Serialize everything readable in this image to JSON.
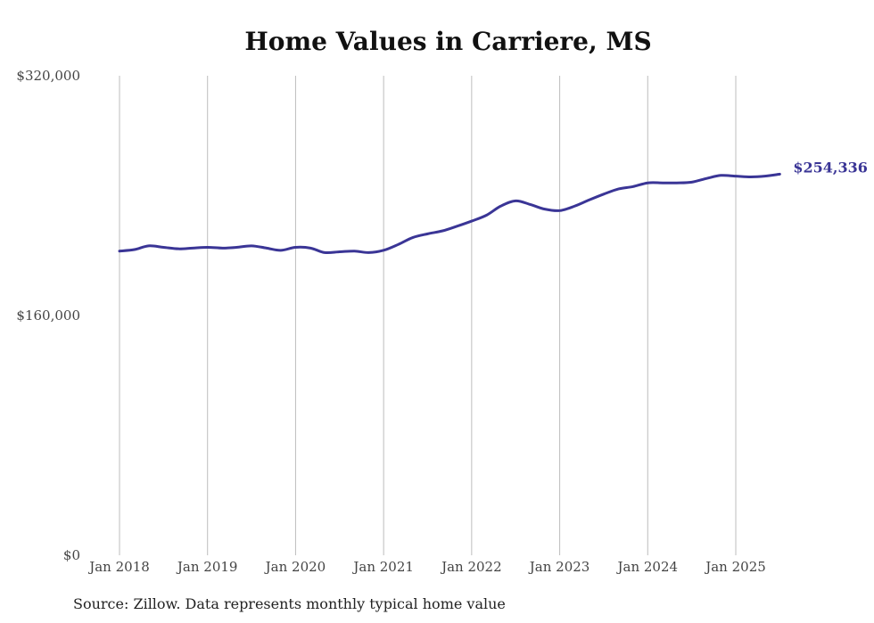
{
  "chart_data": {
    "type": "line",
    "title": "Home Values in Carriere, MS",
    "source": "Source: Zillow. Data represents monthly typical home value",
    "ylim": [
      0,
      320000
    ],
    "yticks": [
      0,
      160000,
      320000
    ],
    "ytick_labels": [
      "$0",
      "$160,000",
      "$320,000"
    ],
    "xticks": [
      2018,
      2019,
      2020,
      2021,
      2022,
      2023,
      2024,
      2025
    ],
    "xtick_labels": [
      "Jan 2018",
      "Jan 2019",
      "Jan 2020",
      "Jan 2021",
      "Jan 2022",
      "Jan 2023",
      "Jan 2024",
      "Jan 2025"
    ],
    "grid": "vertical",
    "line_color": "#3a3596",
    "end_label": "$254,336",
    "series": [
      {
        "x": [
          2018.0,
          2018.17,
          2018.33,
          2018.5,
          2018.67,
          2018.83,
          2019.0,
          2019.17,
          2019.33,
          2019.5,
          2019.67,
          2019.83,
          2020.0,
          2020.17,
          2020.33,
          2020.5,
          2020.67,
          2020.83,
          2021.0,
          2021.17,
          2021.33,
          2021.5,
          2021.67,
          2021.83,
          2022.0,
          2022.17,
          2022.33,
          2022.5,
          2022.67,
          2022.83,
          2023.0,
          2023.17,
          2023.33,
          2023.5,
          2023.67,
          2023.83,
          2024.0,
          2024.17,
          2024.33,
          2024.5,
          2024.67,
          2024.83,
          2025.0,
          2025.17,
          2025.33,
          2025.5
        ],
        "values": [
          203000,
          204000,
          206500,
          205500,
          204500,
          205000,
          205500,
          205000,
          205500,
          206500,
          205000,
          203500,
          205500,
          205000,
          202000,
          202500,
          203000,
          202000,
          203500,
          207500,
          212000,
          214500,
          216500,
          219500,
          223000,
          227000,
          233000,
          236500,
          234000,
          231000,
          230000,
          233000,
          237000,
          241000,
          244500,
          246000,
          248500,
          248500,
          248500,
          249000,
          251500,
          253500,
          253000,
          252500,
          253000,
          254336
        ]
      }
    ]
  }
}
